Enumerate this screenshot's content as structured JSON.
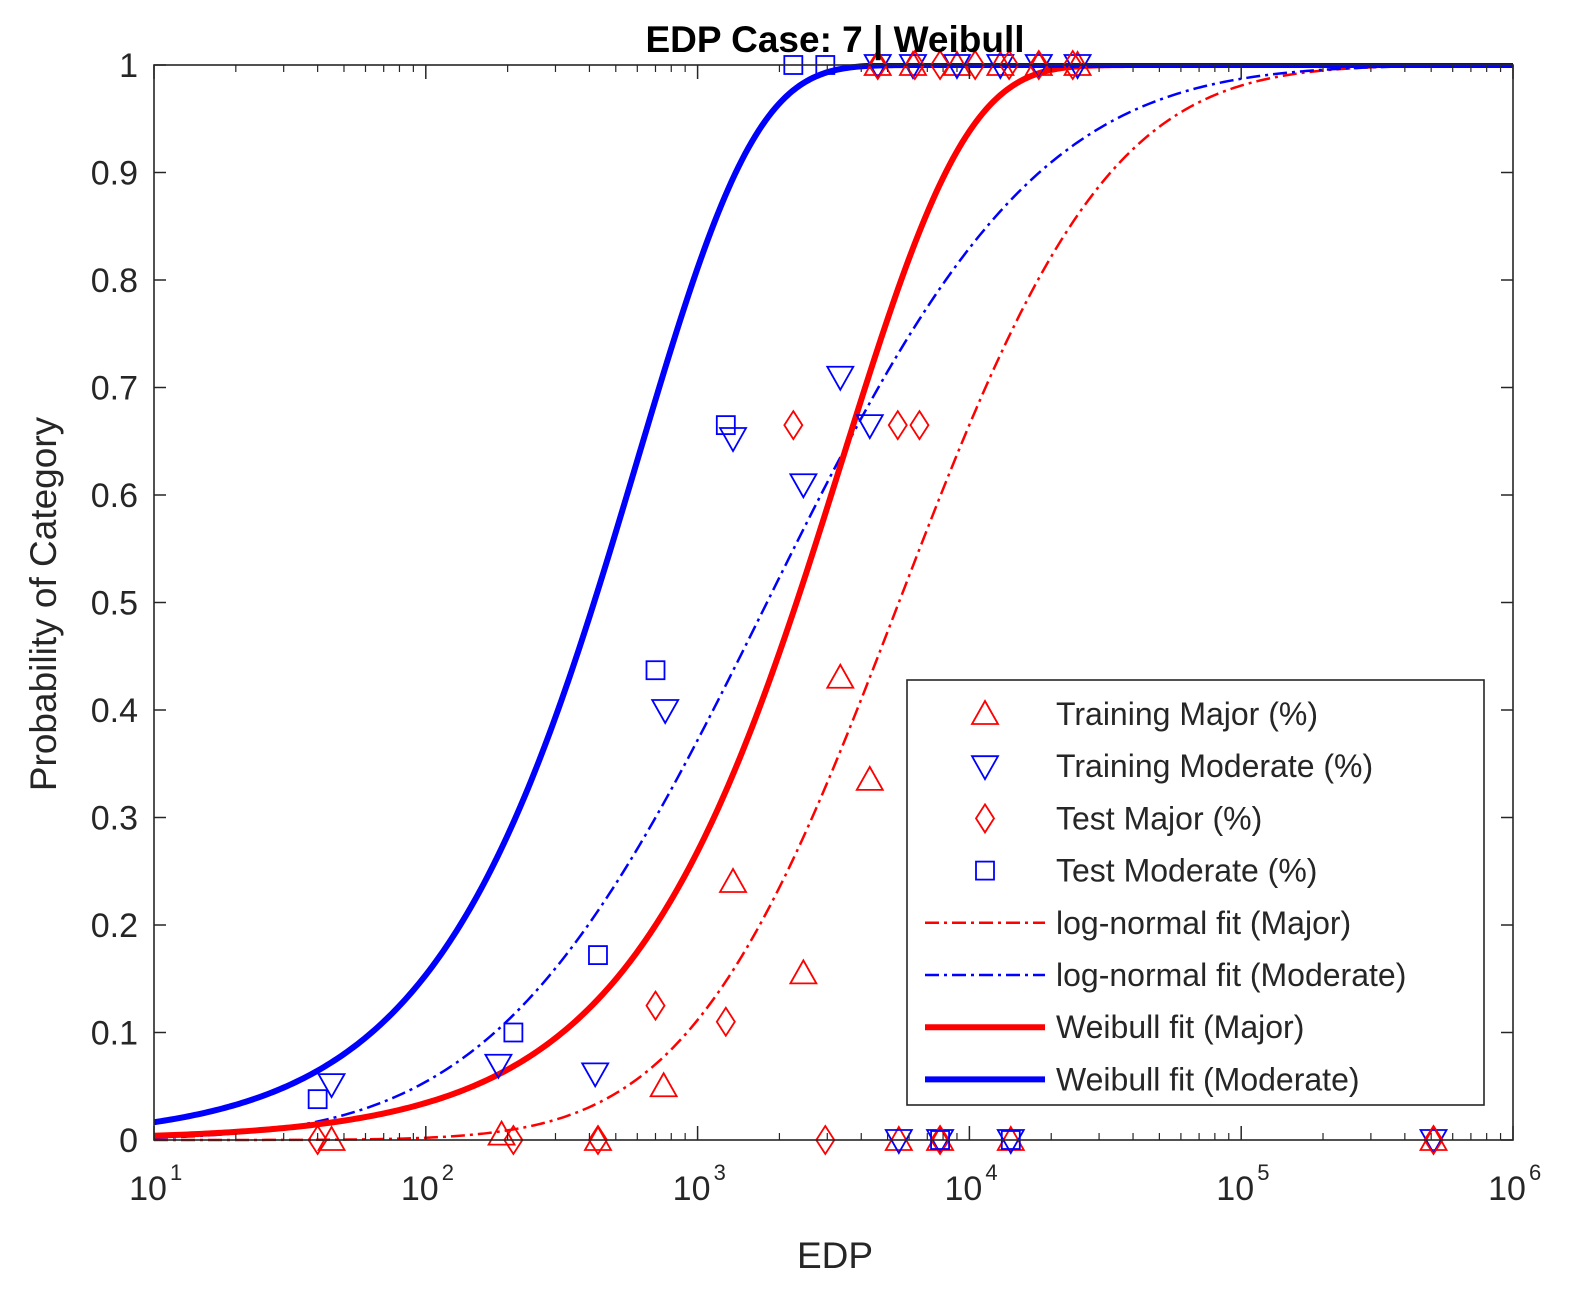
{
  "chart_data": {
    "type": "line",
    "title": "EDP Case: 7 | Weibull",
    "xlabel": "EDP",
    "ylabel": "Probability of Category",
    "xscale": "log",
    "xlim": [
      10,
      1000000
    ],
    "ylim": [
      0,
      1
    ],
    "x_ticks": [
      {
        "value": 10,
        "base": "10",
        "exp": "1"
      },
      {
        "value": 100,
        "base": "10",
        "exp": "2"
      },
      {
        "value": 1000,
        "base": "10",
        "exp": "3"
      },
      {
        "value": 10000,
        "base": "10",
        "exp": "4"
      },
      {
        "value": 100000,
        "base": "10",
        "exp": "5"
      },
      {
        "value": 1000000,
        "base": "10",
        "exp": "6"
      }
    ],
    "y_ticks": [
      {
        "value": 0,
        "label": "0"
      },
      {
        "value": 0.1,
        "label": "0.1"
      },
      {
        "value": 0.2,
        "label": "0.2"
      },
      {
        "value": 0.3,
        "label": "0.3"
      },
      {
        "value": 0.4,
        "label": "0.4"
      },
      {
        "value": 0.5,
        "label": "0.5"
      },
      {
        "value": 0.6,
        "label": "0.6"
      },
      {
        "value": 0.7,
        "label": "0.7"
      },
      {
        "value": 0.8,
        "label": "0.8"
      },
      {
        "value": 0.9,
        "label": "0.9"
      },
      {
        "value": 1,
        "label": "1"
      }
    ],
    "grid": false,
    "legend_position": "bottom-right",
    "colors": {
      "major": "#ff0000",
      "moderate": "#0000ff",
      "axis": "#262626"
    },
    "series": [
      {
        "name": "Training Major (%)",
        "kind": "scatter",
        "marker": "triangle-up",
        "color": "#ff0000",
        "points": [
          [
            45,
            0.0
          ],
          [
            190,
            0.005
          ],
          [
            430,
            0.0
          ],
          [
            750,
            0.05
          ],
          [
            1350,
            0.24
          ],
          [
            2450,
            0.155
          ],
          [
            3350,
            0.43
          ],
          [
            4300,
            0.335
          ],
          [
            5500,
            0.0
          ],
          [
            7800,
            0.0
          ],
          [
            14200,
            0.0
          ],
          [
            510000,
            0.0
          ],
          [
            4600,
            1.0
          ],
          [
            6200,
            1.0
          ],
          [
            9000,
            1.0
          ],
          [
            13000,
            1.0
          ],
          [
            18000,
            1.0
          ],
          [
            25000,
            1.0
          ]
        ]
      },
      {
        "name": "Training Moderate (%)",
        "kind": "scatter",
        "marker": "triangle-down",
        "color": "#0000ff",
        "points": [
          [
            45,
            0.052
          ],
          [
            185,
            0.07
          ],
          [
            420,
            0.062
          ],
          [
            760,
            0.4
          ],
          [
            1350,
            0.653
          ],
          [
            2450,
            0.61
          ],
          [
            3350,
            0.71
          ],
          [
            4300,
            0.665
          ],
          [
            5500,
            0.0
          ],
          [
            7800,
            0.0
          ],
          [
            14200,
            0.0
          ],
          [
            510000,
            0.0
          ],
          [
            4600,
            1.0
          ],
          [
            6200,
            1.0
          ],
          [
            9000,
            1.0
          ],
          [
            13000,
            1.0
          ],
          [
            18000,
            1.0
          ],
          [
            25000,
            1.0
          ]
        ]
      },
      {
        "name": "Test Major (%)",
        "kind": "scatter",
        "marker": "diamond",
        "color": "#ff0000",
        "points": [
          [
            40,
            0.0
          ],
          [
            210,
            0.0
          ],
          [
            430,
            0.0
          ],
          [
            700,
            0.125
          ],
          [
            1270,
            0.11
          ],
          [
            2250,
            0.665
          ],
          [
            2950,
            0.0
          ],
          [
            5450,
            0.665
          ],
          [
            6550,
            0.665
          ],
          [
            7800,
            0.0
          ],
          [
            4600,
            1.0
          ],
          [
            6300,
            1.0
          ],
          [
            7800,
            1.0
          ],
          [
            10500,
            1.0
          ],
          [
            14000,
            1.0
          ],
          [
            18000,
            1.0
          ],
          [
            24000,
            1.0
          ],
          [
            510000,
            0.0
          ]
        ]
      },
      {
        "name": "Test Moderate (%)",
        "kind": "scatter",
        "marker": "square",
        "color": "#0000ff",
        "points": [
          [
            40,
            0.038
          ],
          [
            210,
            0.1
          ],
          [
            430,
            0.172
          ],
          [
            700,
            0.437
          ],
          [
            1270,
            0.665
          ],
          [
            2250,
            1.0
          ],
          [
            2950,
            1.0
          ],
          [
            7800,
            0.0
          ],
          [
            14200,
            0.0
          ]
        ]
      },
      {
        "name": "log-normal fit (Major)",
        "kind": "line",
        "style": "dashdot",
        "color": "#ff0000",
        "model": "lognormal",
        "median": 5500,
        "beta": 1.4
      },
      {
        "name": "log-normal fit (Moderate)",
        "kind": "line",
        "style": "dashdot",
        "color": "#0000ff",
        "model": "lognormal",
        "median": 1800,
        "beta": 1.8
      },
      {
        "name": "Weibull fit (Major)",
        "kind": "line",
        "style": "solid",
        "color": "#ff0000",
        "model": "weibull",
        "scale": 3400,
        "shape": 0.95
      },
      {
        "name": "Weibull fit (Moderate)",
        "kind": "line",
        "style": "solid",
        "color": "#0000ff",
        "model": "weibull",
        "scale": 600,
        "shape": 1.0
      }
    ]
  }
}
